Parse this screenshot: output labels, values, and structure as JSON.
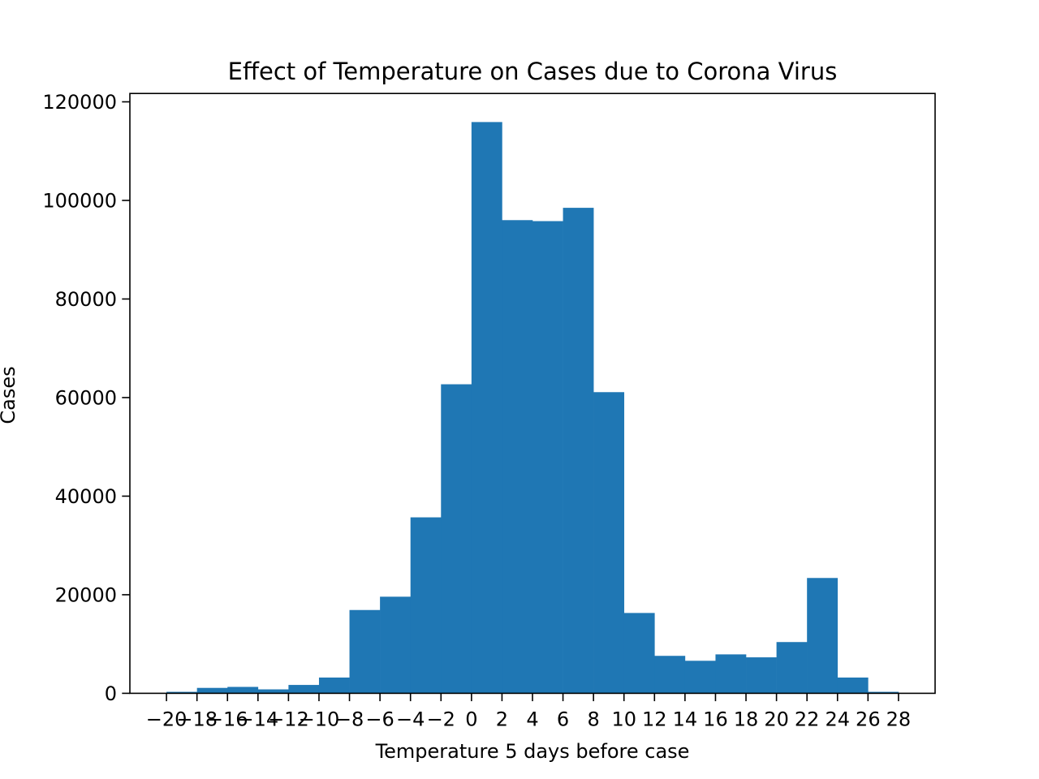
{
  "chart_data": {
    "type": "bar",
    "title": "Effect of Temperature on Cases due to Corona Virus",
    "xlabel": "Temperature 5 days before case",
    "ylabel": "Cases",
    "bin_edges": [
      -20,
      -18,
      -16,
      -14,
      -12,
      -10,
      -8,
      -6,
      -4,
      -2,
      0,
      2,
      4,
      6,
      8,
      10,
      12,
      14,
      16,
      18,
      20,
      22,
      24,
      26,
      28
    ],
    "values": [
      300,
      1100,
      1300,
      800,
      1700,
      3200,
      16900,
      19600,
      35700,
      62700,
      115900,
      96000,
      95800,
      98500,
      61100,
      16300,
      7600,
      6600,
      7900,
      7300,
      10400,
      23400,
      3200,
      300
    ],
    "x_ticks": [
      -20,
      -18,
      -16,
      -14,
      -12,
      -10,
      -8,
      -6,
      -4,
      -2,
      0,
      2,
      4,
      6,
      8,
      10,
      12,
      14,
      16,
      18,
      20,
      22,
      24,
      26,
      28
    ],
    "x_tick_labels": [
      "−20",
      "−18",
      "−16",
      "−14",
      "−12",
      "−10",
      "−8",
      "−6",
      "−4",
      "−2",
      "0",
      "2",
      "4",
      "6",
      "8",
      "10",
      "12",
      "14",
      "16",
      "18",
      "20",
      "22",
      "24",
      "26",
      "28"
    ],
    "y_ticks": [
      0,
      20000,
      40000,
      60000,
      80000,
      100000,
      120000
    ],
    "y_tick_labels": [
      "0",
      "20000",
      "40000",
      "60000",
      "80000",
      "100000",
      "120000"
    ],
    "xlim": [
      -22.4,
      30.4
    ],
    "ylim": [
      0,
      121695
    ],
    "grid": false,
    "legend": "none",
    "colors": {
      "bar": "#1f77b4",
      "axes": "#000000",
      "background": "#ffffff"
    }
  }
}
